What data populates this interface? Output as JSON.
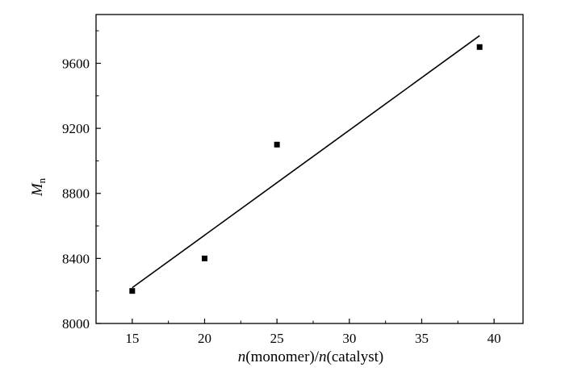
{
  "chart_data": {
    "type": "scatter",
    "title": "",
    "xlabel": {
      "italic": "n",
      "text1": "(monomer)/",
      "italic2": "n",
      "text2": "(catalyst)"
    },
    "ylabel": {
      "main": "M",
      "sub": "n"
    },
    "xlim": [
      12.5,
      42
    ],
    "ylim": [
      8000,
      9900
    ],
    "xticks": [
      15,
      20,
      25,
      30,
      35,
      40
    ],
    "yticks": [
      8000,
      8400,
      8800,
      9200,
      9600
    ],
    "series": [
      {
        "points": [
          {
            "x": 15,
            "y": 8200
          },
          {
            "x": 20,
            "y": 8400
          },
          {
            "x": 25,
            "y": 9100
          },
          {
            "x": 39,
            "y": 9700
          }
        ]
      }
    ],
    "fit_line": {
      "x": [
        15,
        39
      ],
      "y": [
        8220,
        9770
      ]
    },
    "grid": false,
    "legend": false
  }
}
